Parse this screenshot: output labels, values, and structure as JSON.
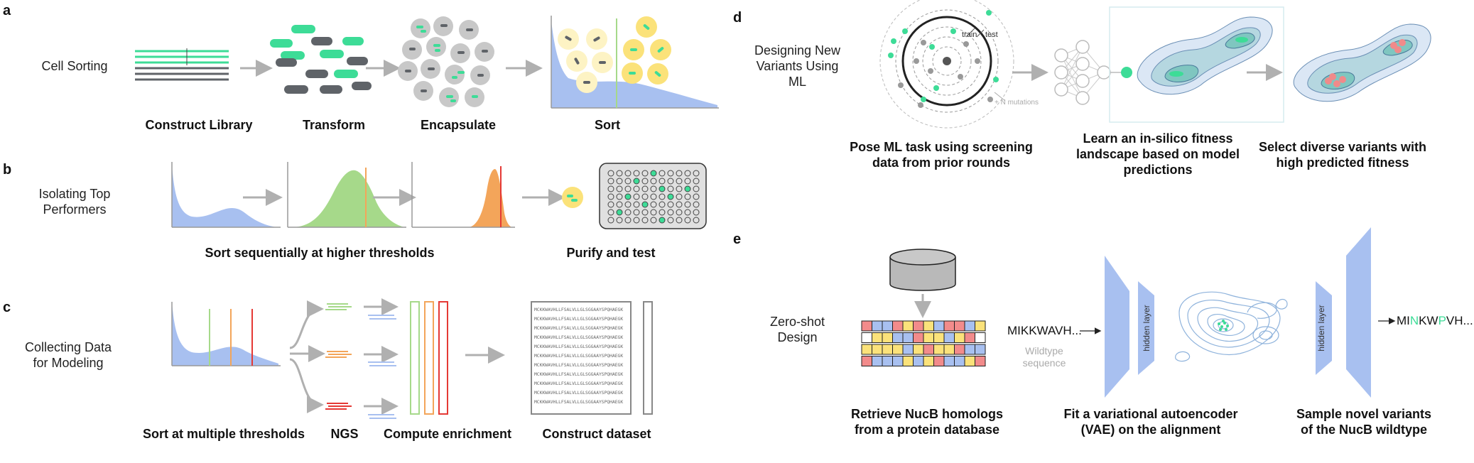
{
  "panels": {
    "a": {
      "letter": "a",
      "row_label": "Cell Sorting",
      "steps": [
        "Construct Library",
        "Transform",
        "Encapsulate",
        "Sort"
      ]
    },
    "b": {
      "letter": "b",
      "row_label": "Isolating Top Performers",
      "steps": [
        "Sort sequentially at higher thresholds",
        "Purify and test"
      ]
    },
    "c": {
      "letter": "c",
      "row_label": "Collecting Data for Modeling",
      "steps": [
        "Sort at multiple thresholds",
        "NGS",
        "Compute enrichment",
        "Construct dataset"
      ],
      "sequences": [
        "MCKKWAVHLLFSALVLLGLSGGAAYSPQHAEGK",
        "MCKKWAVHLLFSALVLLGLSGGAAYSPQHAEGK",
        "MCKKWAVHLLFSALVLLGLSGGAAYSPQHAEGK",
        "MCKKWAVHLLFSALVLLGLSGGAAYSPQHAEGK",
        "MCKKWAVHLLFSALVLLGLSGGAAYSPQHAEGK",
        "MCKKWAVHLLFSALVLLGLSGGAAYSPQHAEGK",
        "MCKKWAVHLLFSALVLLGLSGGAAYSPQHAEGK",
        "MCKKWAVHLLFSALVLLGLSGGAAYSPQHAEGK",
        "MCKKWAVHLLFSALVLLGLSGGAAYSPQHAEGK",
        "MCKKWAVHLLFSALVLLGLSGGAAYSPQHAEGK",
        "MCKKWAVHLLFSALVLLGLSGGAAYSPQHAEGK"
      ]
    },
    "d": {
      "letter": "d",
      "row_label": "Designing New Variants Using ML",
      "train_label": "train",
      "test_label": "test",
      "mutations_label": "+ N mutations",
      "steps": [
        "Pose ML task using screening data from prior rounds",
        "Learn an in-silico fitness landscape based on model predictions",
        "Select diverse variants with high predicted fitness"
      ]
    },
    "e": {
      "letter": "e",
      "row_label": "Zero-shot Design",
      "wildtype_seq": "MIKKWAVH...",
      "wildtype_label": "Wildtype sequence",
      "hidden_layer_label": "hidden layer",
      "output_seq": {
        "p1": "MI",
        "p2": "N",
        "p3": "KW",
        "p4": "P",
        "p5": "VH..."
      },
      "steps": [
        "Retrieve NucB homologs from a protein database",
        "Fit a variational autoencoder (VAE) on the alignment",
        "Sample novel variants of the NucB wildtype"
      ]
    }
  },
  "colors": {
    "green": "#3ddc97",
    "grey_dark": "#5f6368",
    "blue_dist": "#a8c0f0",
    "green_dist": "#a6d98a",
    "orange_dist": "#f3a55a",
    "red": "#e53935",
    "yellow": "#fbe27a",
    "arrow": "#b0b0b0"
  }
}
